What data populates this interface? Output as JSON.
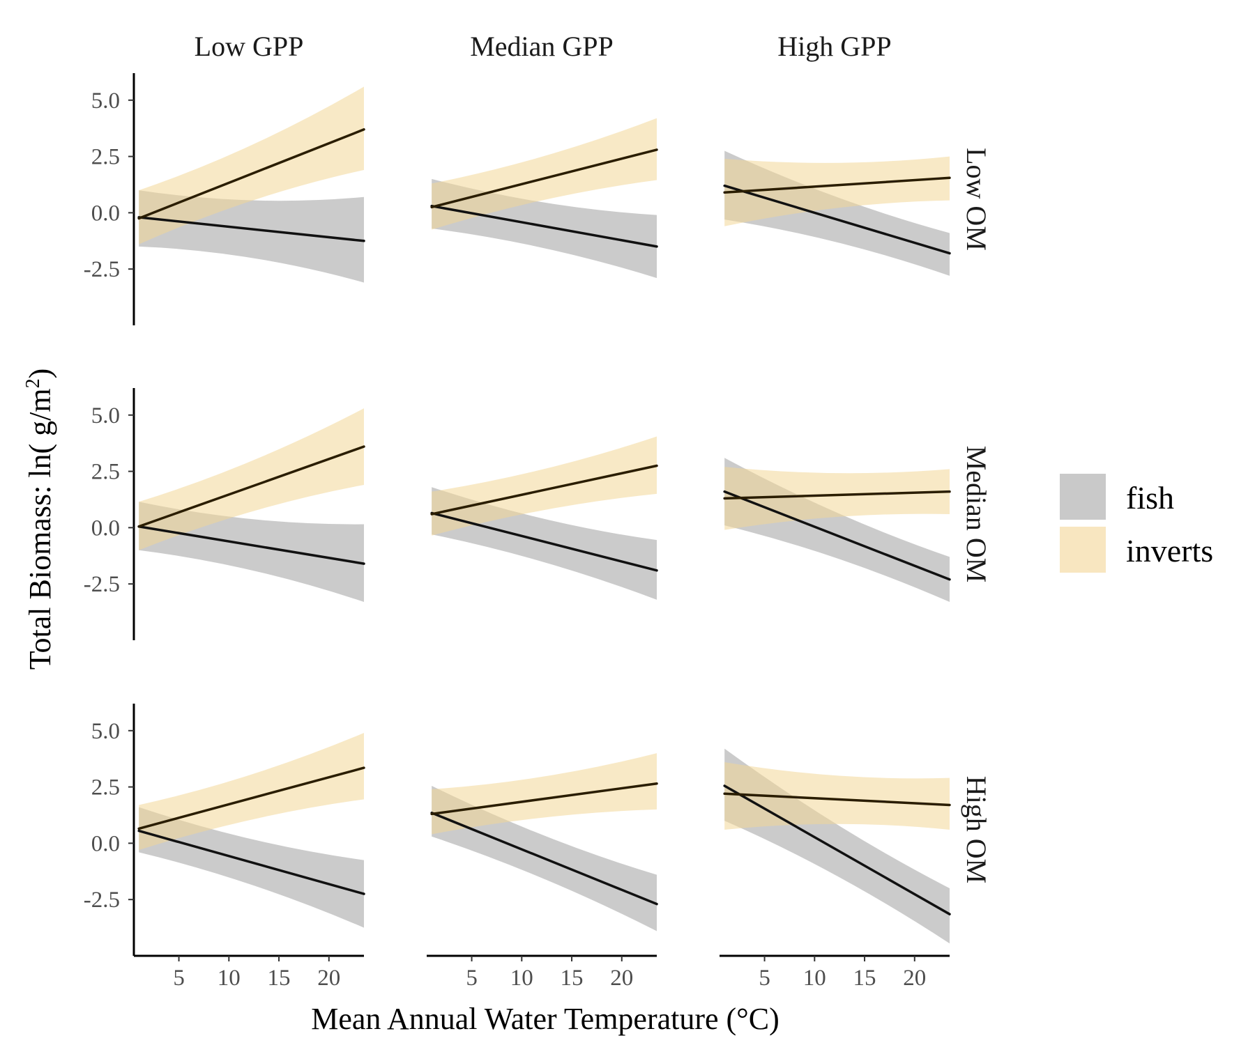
{
  "chart_data": {
    "type": "line",
    "xlabel": "Mean Annual Water Temperature (°C)",
    "ylabel": {
      "main": "Total Biomass: ln( g/m",
      "sup": "2",
      "close": ")"
    },
    "columns": [
      "Low GPP",
      "Median GPP",
      "High GPP"
    ],
    "rows": [
      "Low OM",
      "Median OM",
      "High OM"
    ],
    "xlim": [
      0.5,
      23.5
    ],
    "ylim": [
      -5,
      6.2
    ],
    "xticks": [
      5,
      10,
      15,
      20
    ],
    "xtick_labels": [
      "5",
      "10",
      "15",
      "20"
    ],
    "yticks": [
      5.0,
      2.5,
      0.0,
      -2.5
    ],
    "ytick_labels": [
      "5.0",
      "2.5",
      "0.0",
      "-2.5"
    ],
    "grid": false,
    "legend": {
      "position": "right",
      "entries": [
        {
          "label": "fish",
          "color": "#c9c9c9"
        },
        {
          "label": "inverts",
          "color": "#f8e6c0"
        }
      ]
    },
    "colors": {
      "fish_band": "#b3b3b3",
      "inverts_band": "#f3d798",
      "fish_line": "#111111",
      "inverts_line": "#2a1d00"
    },
    "panels": [
      {
        "row": "Low OM",
        "col": "Low GPP",
        "fish": {
          "x": [
            1,
            23.5
          ],
          "y": [
            -0.2,
            -1.25
          ],
          "lo": [
            -1.5,
            -3.1
          ],
          "hi": [
            1.0,
            0.7
          ]
        },
        "inverts": {
          "x": [
            1,
            23.5
          ],
          "y": [
            -0.25,
            3.7
          ],
          "lo": [
            -1.4,
            1.9
          ],
          "hi": [
            1.0,
            5.6
          ]
        }
      },
      {
        "row": "Low OM",
        "col": "Median GPP",
        "fish": {
          "x": [
            1,
            23.5
          ],
          "y": [
            0.3,
            -1.5
          ],
          "lo": [
            -0.7,
            -2.9
          ],
          "hi": [
            1.5,
            -0.1
          ]
        },
        "inverts": {
          "x": [
            1,
            23.5
          ],
          "y": [
            0.25,
            2.8
          ],
          "lo": [
            -0.75,
            1.45
          ],
          "hi": [
            1.3,
            4.2
          ]
        }
      },
      {
        "row": "Low OM",
        "col": "High GPP",
        "fish": {
          "x": [
            1,
            23.5
          ],
          "y": [
            1.2,
            -1.8
          ],
          "lo": [
            -0.3,
            -2.8
          ],
          "hi": [
            2.75,
            -0.9
          ]
        },
        "inverts": {
          "x": [
            1,
            23.5
          ],
          "y": [
            0.9,
            1.55
          ],
          "lo": [
            -0.6,
            0.55
          ],
          "hi": [
            2.4,
            2.5
          ]
        }
      },
      {
        "row": "Median OM",
        "col": "Low GPP",
        "fish": {
          "x": [
            1,
            23.5
          ],
          "y": [
            0.05,
            -1.6
          ],
          "lo": [
            -1.0,
            -3.3
          ],
          "hi": [
            1.15,
            0.15
          ]
        },
        "inverts": {
          "x": [
            1,
            23.5
          ],
          "y": [
            0.05,
            3.6
          ],
          "lo": [
            -1.0,
            1.9
          ],
          "hi": [
            1.15,
            5.3
          ]
        }
      },
      {
        "row": "Median OM",
        "col": "Median GPP",
        "fish": {
          "x": [
            1,
            23.5
          ],
          "y": [
            0.65,
            -1.9
          ],
          "lo": [
            -0.3,
            -3.2
          ],
          "hi": [
            1.8,
            -0.55
          ]
        },
        "inverts": {
          "x": [
            1,
            23.5
          ],
          "y": [
            0.6,
            2.75
          ],
          "lo": [
            -0.35,
            1.5
          ],
          "hi": [
            1.6,
            4.05
          ]
        }
      },
      {
        "row": "Median OM",
        "col": "High GPP",
        "fish": {
          "x": [
            1,
            23.5
          ],
          "y": [
            1.6,
            -2.3
          ],
          "lo": [
            0.1,
            -3.3
          ],
          "hi": [
            3.1,
            -1.3
          ]
        },
        "inverts": {
          "x": [
            1,
            23.5
          ],
          "y": [
            1.3,
            1.6
          ],
          "lo": [
            -0.1,
            0.6
          ],
          "hi": [
            2.7,
            2.6
          ]
        }
      },
      {
        "row": "High OM",
        "col": "Low GPP",
        "fish": {
          "x": [
            1,
            23.5
          ],
          "y": [
            0.55,
            -2.25
          ],
          "lo": [
            -0.4,
            -3.75
          ],
          "hi": [
            1.6,
            -0.75
          ]
        },
        "inverts": {
          "x": [
            1,
            23.5
          ],
          "y": [
            0.65,
            3.35
          ],
          "lo": [
            -0.3,
            1.95
          ],
          "hi": [
            1.7,
            4.9
          ]
        }
      },
      {
        "row": "High OM",
        "col": "Median GPP",
        "fish": {
          "x": [
            1,
            23.5
          ],
          "y": [
            1.35,
            -2.7
          ],
          "lo": [
            0.3,
            -3.9
          ],
          "hi": [
            2.55,
            -1.4
          ]
        },
        "inverts": {
          "x": [
            1,
            23.5
          ],
          "y": [
            1.3,
            2.65
          ],
          "lo": [
            0.4,
            1.5
          ],
          "hi": [
            2.4,
            4.0
          ]
        }
      },
      {
        "row": "High OM",
        "col": "High GPP",
        "fish": {
          "x": [
            1,
            23.5
          ],
          "y": [
            2.55,
            -3.15
          ],
          "lo": [
            1.0,
            -4.45
          ],
          "hi": [
            4.2,
            -2.0
          ]
        },
        "inverts": {
          "x": [
            1,
            23.5
          ],
          "y": [
            2.2,
            1.7
          ],
          "lo": [
            0.6,
            0.6
          ],
          "hi": [
            3.6,
            2.9
          ]
        }
      }
    ]
  }
}
